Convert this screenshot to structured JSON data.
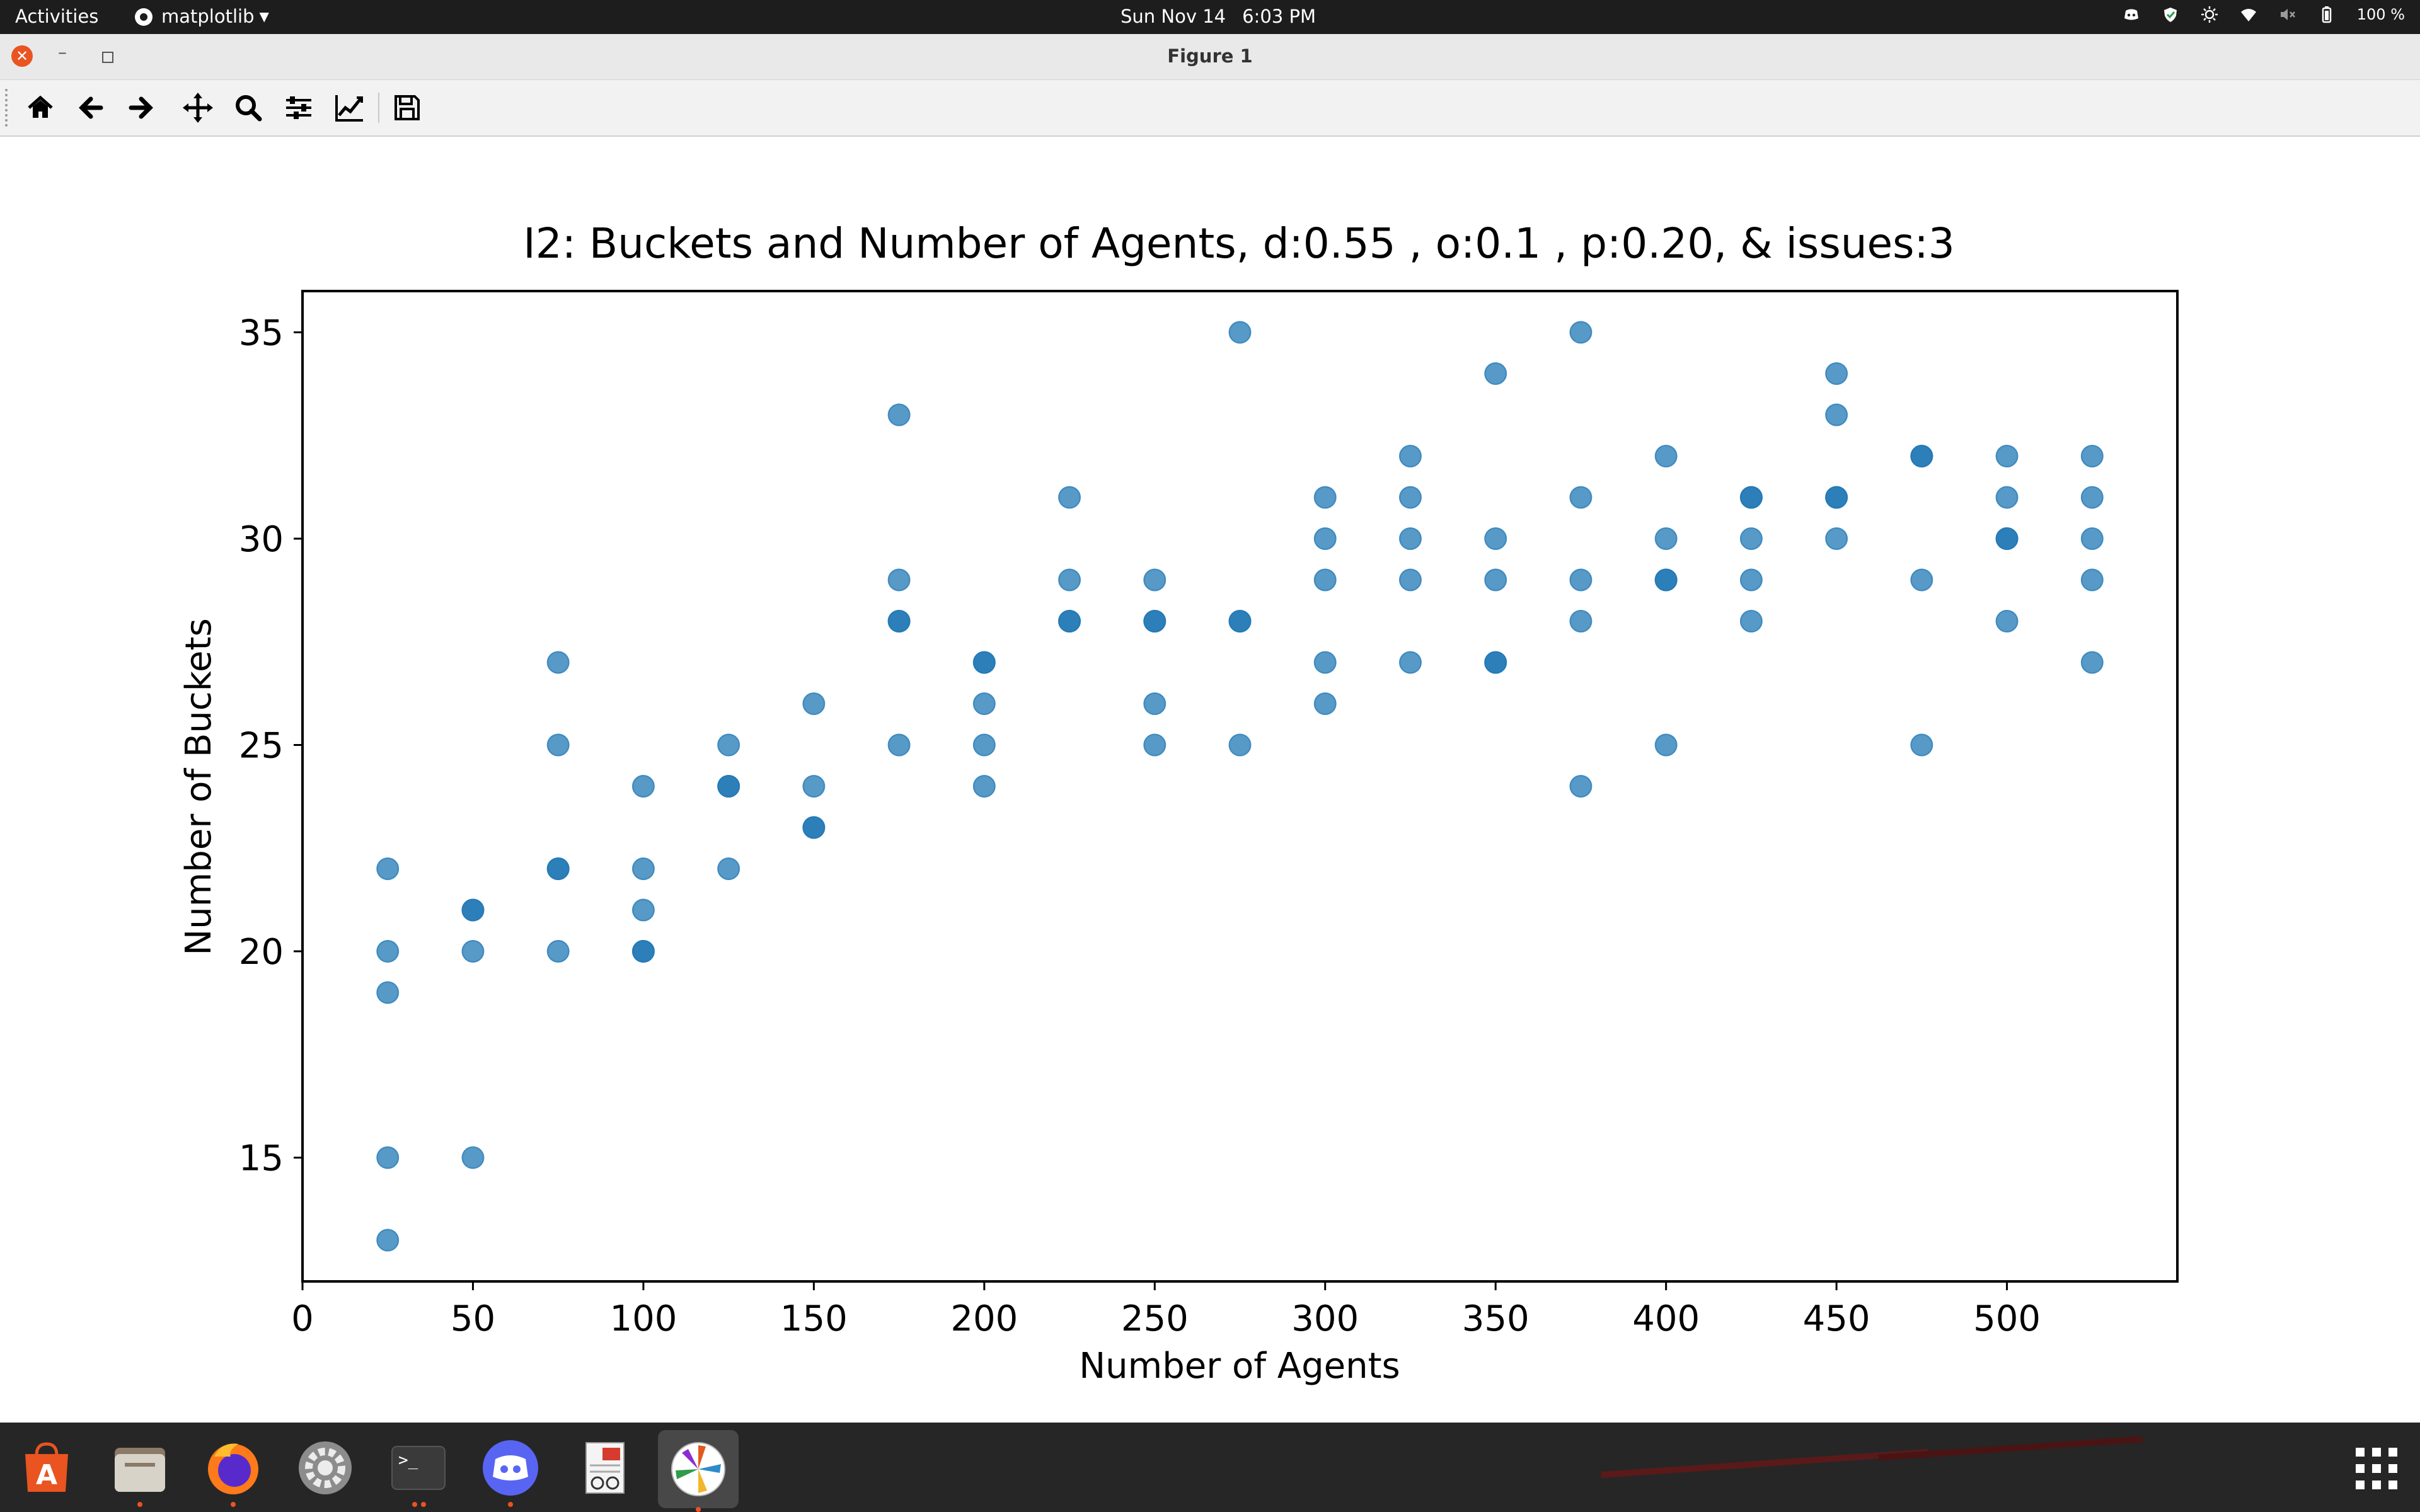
{
  "topbar": {
    "activities": "Activities",
    "app_name": "matplotlib",
    "date": "Sun Nov 14",
    "time": "6:03 PM",
    "battery": "100 %",
    "tray_icons": [
      "discord-tray-icon",
      "shield-tray-icon",
      "brightness-icon",
      "wifi-icon",
      "volume-muted-icon",
      "battery-icon"
    ]
  },
  "window": {
    "title": "Figure 1",
    "controls": [
      "close",
      "minimize",
      "restore"
    ]
  },
  "toolbar": {
    "tools": [
      "home",
      "back",
      "forward",
      "pan",
      "zoom",
      "configure-subplots",
      "edit-axis",
      "save"
    ]
  },
  "chart_data": {
    "type": "scatter",
    "title": "I2: Buckets and Number of Agents, d:0.55 , o:0.1 , p:0.20, & issues:3",
    "xlabel": "Number of Agents",
    "ylabel": "Number of Buckets",
    "xlim": [
      0,
      550
    ],
    "ylim": [
      12,
      36
    ],
    "xticks": [
      0,
      50,
      100,
      150,
      200,
      250,
      300,
      350,
      400,
      450,
      500
    ],
    "yticks": [
      15,
      20,
      25,
      30,
      35
    ],
    "grid": false,
    "legend": "none",
    "marker_color": "#1f77b4",
    "marker_alpha": 0.75,
    "points": [
      {
        "x": 25,
        "y": 22
      },
      {
        "x": 25,
        "y": 20
      },
      {
        "x": 25,
        "y": 19
      },
      {
        "x": 25,
        "y": 15
      },
      {
        "x": 25,
        "y": 13
      },
      {
        "x": 50,
        "y": 21
      },
      {
        "x": 50,
        "y": 21
      },
      {
        "x": 50,
        "y": 20
      },
      {
        "x": 50,
        "y": 15
      },
      {
        "x": 75,
        "y": 27
      },
      {
        "x": 75,
        "y": 25
      },
      {
        "x": 75,
        "y": 22
      },
      {
        "x": 75,
        "y": 22
      },
      {
        "x": 75,
        "y": 20
      },
      {
        "x": 100,
        "y": 24
      },
      {
        "x": 100,
        "y": 22
      },
      {
        "x": 100,
        "y": 21
      },
      {
        "x": 100,
        "y": 20
      },
      {
        "x": 100,
        "y": 20
      },
      {
        "x": 125,
        "y": 25
      },
      {
        "x": 125,
        "y": 24
      },
      {
        "x": 125,
        "y": 24
      },
      {
        "x": 125,
        "y": 22
      },
      {
        "x": 150,
        "y": 26
      },
      {
        "x": 150,
        "y": 24
      },
      {
        "x": 150,
        "y": 23
      },
      {
        "x": 150,
        "y": 23
      },
      {
        "x": 175,
        "y": 33
      },
      {
        "x": 175,
        "y": 29
      },
      {
        "x": 175,
        "y": 28
      },
      {
        "x": 175,
        "y": 28
      },
      {
        "x": 175,
        "y": 25
      },
      {
        "x": 200,
        "y": 27
      },
      {
        "x": 200,
        "y": 27
      },
      {
        "x": 200,
        "y": 26
      },
      {
        "x": 200,
        "y": 25
      },
      {
        "x": 200,
        "y": 24
      },
      {
        "x": 225,
        "y": 31
      },
      {
        "x": 225,
        "y": 29
      },
      {
        "x": 225,
        "y": 28
      },
      {
        "x": 225,
        "y": 28
      },
      {
        "x": 250,
        "y": 29
      },
      {
        "x": 250,
        "y": 28
      },
      {
        "x": 250,
        "y": 28
      },
      {
        "x": 250,
        "y": 26
      },
      {
        "x": 250,
        "y": 25
      },
      {
        "x": 275,
        "y": 35
      },
      {
        "x": 275,
        "y": 28
      },
      {
        "x": 275,
        "y": 28
      },
      {
        "x": 275,
        "y": 25
      },
      {
        "x": 300,
        "y": 31
      },
      {
        "x": 300,
        "y": 30
      },
      {
        "x": 300,
        "y": 29
      },
      {
        "x": 300,
        "y": 27
      },
      {
        "x": 300,
        "y": 26
      },
      {
        "x": 325,
        "y": 32
      },
      {
        "x": 325,
        "y": 31
      },
      {
        "x": 325,
        "y": 30
      },
      {
        "x": 325,
        "y": 29
      },
      {
        "x": 325,
        "y": 27
      },
      {
        "x": 350,
        "y": 34
      },
      {
        "x": 350,
        "y": 30
      },
      {
        "x": 350,
        "y": 29
      },
      {
        "x": 350,
        "y": 27
      },
      {
        "x": 350,
        "y": 27
      },
      {
        "x": 375,
        "y": 35
      },
      {
        "x": 375,
        "y": 31
      },
      {
        "x": 375,
        "y": 29
      },
      {
        "x": 375,
        "y": 28
      },
      {
        "x": 375,
        "y": 24
      },
      {
        "x": 400,
        "y": 32
      },
      {
        "x": 400,
        "y": 30
      },
      {
        "x": 400,
        "y": 29
      },
      {
        "x": 400,
        "y": 29
      },
      {
        "x": 400,
        "y": 25
      },
      {
        "x": 425,
        "y": 31
      },
      {
        "x": 425,
        "y": 31
      },
      {
        "x": 425,
        "y": 30
      },
      {
        "x": 425,
        "y": 29
      },
      {
        "x": 425,
        "y": 28
      },
      {
        "x": 450,
        "y": 34
      },
      {
        "x": 450,
        "y": 33
      },
      {
        "x": 450,
        "y": 31
      },
      {
        "x": 450,
        "y": 31
      },
      {
        "x": 450,
        "y": 30
      },
      {
        "x": 475,
        "y": 32
      },
      {
        "x": 475,
        "y": 32
      },
      {
        "x": 475,
        "y": 29
      },
      {
        "x": 475,
        "y": 25
      },
      {
        "x": 500,
        "y": 32
      },
      {
        "x": 500,
        "y": 31
      },
      {
        "x": 500,
        "y": 30
      },
      {
        "x": 500,
        "y": 30
      },
      {
        "x": 500,
        "y": 28
      },
      {
        "x": 525,
        "y": 32
      },
      {
        "x": 525,
        "y": 31
      },
      {
        "x": 525,
        "y": 30
      },
      {
        "x": 525,
        "y": 29
      },
      {
        "x": 525,
        "y": 27
      }
    ]
  },
  "dock": {
    "apps": [
      "ubuntu-software-icon",
      "files-icon",
      "firefox-icon",
      "settings-icon",
      "terminal-icon",
      "discord-icon",
      "document-viewer-icon",
      "matplotlib-icon"
    ],
    "terminal_glyph": ">_",
    "software_glyph": "A"
  }
}
